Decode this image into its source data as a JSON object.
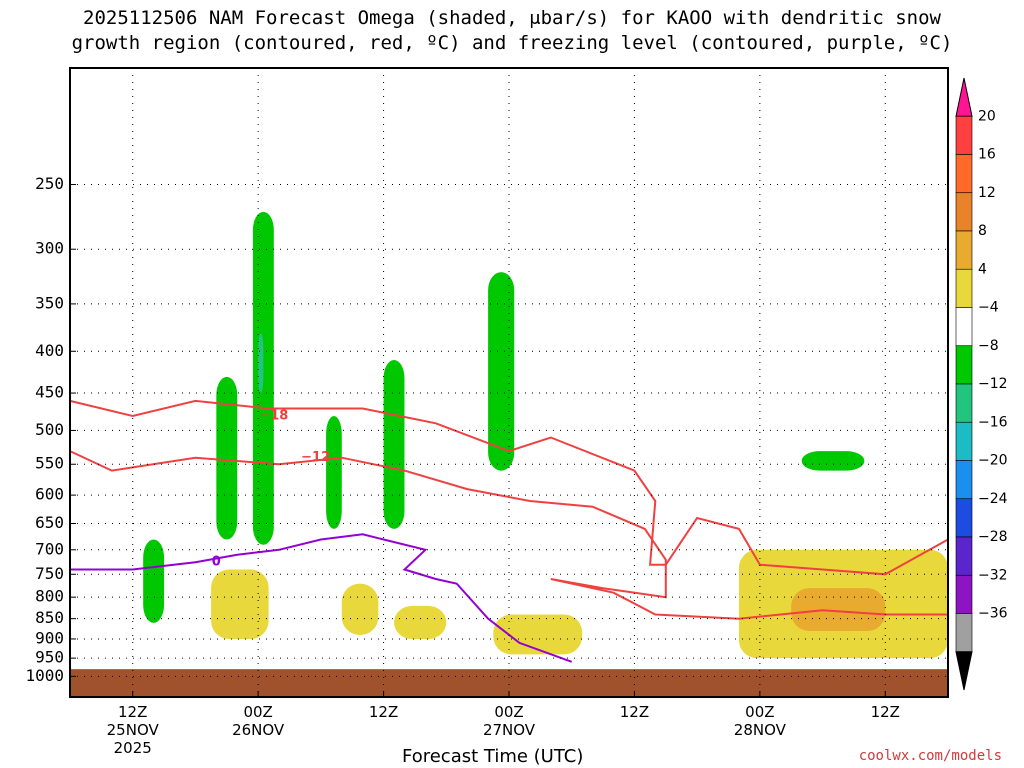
{
  "figure": {
    "title_line1": "2025112506 NAM Forecast Omega (shaded, μbar/s) for KAOO with dendritic snow",
    "title_line2": "growth region (contoured, red, ºC) and freezing level (contoured, purple, ºC)",
    "credit": "coolwx.com/models"
  },
  "chart_data": {
    "type": "heatmap",
    "title": "2025112506 NAM Forecast Omega (shaded, μbar/s) for KAOO with dendritic snow growth region (contoured, red, ºC) and freezing level (contoured, purple, ºC)",
    "xlabel": "Forecast Time (UTC)",
    "ylabel": "",
    "y_scale": "log",
    "y_reversed": true,
    "yticks": [
      250,
      300,
      350,
      400,
      450,
      500,
      550,
      600,
      650,
      700,
      750,
      800,
      850,
      900,
      950,
      1000
    ],
    "xticks": [
      {
        "hours": 6,
        "label": "12Z",
        "date": "25NOV",
        "year": "2025"
      },
      {
        "hours": 18,
        "label": "00Z",
        "date": "26NOV",
        "year": ""
      },
      {
        "hours": 30,
        "label": "12Z",
        "date": "",
        "year": ""
      },
      {
        "hours": 42,
        "label": "00Z",
        "date": "27NOV",
        "year": ""
      },
      {
        "hours": 54,
        "label": "12Z",
        "date": "",
        "year": ""
      },
      {
        "hours": 66,
        "label": "00Z",
        "date": "28NOV",
        "year": ""
      },
      {
        "hours": 78,
        "label": "12Z",
        "date": "",
        "year": ""
      }
    ],
    "xlim_hours": [
      0,
      84
    ],
    "ylim_hpa": [
      180,
      1060
    ],
    "grid": true,
    "colorbar": {
      "labels": [
        "20",
        "16",
        "12",
        "8",
        "4",
        "−4",
        "−8",
        "−12",
        "−16",
        "−20",
        "−24",
        "−28",
        "−32",
        "−36"
      ],
      "colors": [
        "#ff1493",
        "#ff4040",
        "#ff6a2a",
        "#e8832a",
        "#e8aa2f",
        "#e9d83b",
        "#ffffff",
        "#00c800",
        "#22c57e",
        "#1dbcc4",
        "#1a8ff0",
        "#1d4de0",
        "#5a25cc",
        "#8c14c2",
        "#a0a0a0",
        "#000000"
      ],
      "orientation": "vertical",
      "placement": "right"
    },
    "ground_color": "#a0522d",
    "shaded_regions": [
      {
        "name": "upward motion -4 to -8",
        "color": "#00c800",
        "t_range": [
          17.5,
          19.5
        ],
        "p_range": [
          270,
          690
        ]
      },
      {
        "name": "upward motion -8 to -12",
        "color": "#22c57e",
        "t_range": [
          18,
          18.5
        ],
        "p_range": [
          380,
          450
        ]
      },
      {
        "name": "upward motion -4 to -8",
        "color": "#00c800",
        "t_range": [
          14,
          16
        ],
        "p_range": [
          430,
          680
        ]
      },
      {
        "name": "upward motion -4 to -8",
        "color": "#00c800",
        "t_range": [
          24.5,
          26
        ],
        "p_range": [
          480,
          660
        ]
      },
      {
        "name": "upward motion -4 to -8",
        "color": "#00c800",
        "t_range": [
          30,
          32
        ],
        "p_range": [
          410,
          660
        ]
      },
      {
        "name": "upward motion -4 to -8",
        "color": "#00c800",
        "t_range": [
          40,
          42.5
        ],
        "p_range": [
          320,
          560
        ]
      },
      {
        "name": "upward motion -4 to -8",
        "color": "#00c800",
        "t_range": [
          7,
          9
        ],
        "p_range": [
          680,
          860
        ]
      },
      {
        "name": "upward motion -4 to -8",
        "color": "#00c800",
        "t_range": [
          70,
          76
        ],
        "p_range": [
          530,
          560
        ]
      },
      {
        "name": "downward motion 4 to 8",
        "color": "#e9d83b",
        "t_range": [
          64,
          84
        ],
        "p_range": [
          700,
          950
        ]
      },
      {
        "name": "downward motion 8 to 12",
        "color": "#e8aa2f",
        "t_range": [
          69,
          78
        ],
        "p_range": [
          780,
          880
        ]
      },
      {
        "name": "downward motion 4 to 8",
        "color": "#e9d83b",
        "t_range": [
          40.5,
          49
        ],
        "p_range": [
          840,
          940
        ]
      },
      {
        "name": "downward motion 4 to 8",
        "color": "#e9d83b",
        "t_range": [
          13.5,
          19
        ],
        "p_range": [
          740,
          900
        ]
      },
      {
        "name": "downward motion 4 to 8",
        "color": "#e9d83b",
        "t_range": [
          26,
          29.5
        ],
        "p_range": [
          770,
          890
        ]
      },
      {
        "name": "downward motion 4 to 8",
        "color": "#e9d83b",
        "t_range": [
          31,
          36
        ],
        "p_range": [
          820,
          900
        ]
      }
    ],
    "contours": [
      {
        "name": "-18 isotherm",
        "color": "#f04040",
        "label": "−18",
        "label_hours": 19.5,
        "label_hpa": 480,
        "points": [
          [
            0,
            460
          ],
          [
            6,
            480
          ],
          [
            12,
            460
          ],
          [
            19,
            470
          ],
          [
            28,
            470
          ],
          [
            35,
            490
          ],
          [
            42,
            530
          ],
          [
            46,
            510
          ],
          [
            54,
            560
          ],
          [
            56,
            610
          ],
          [
            55.5,
            730
          ],
          [
            57,
            730
          ],
          [
            60,
            640
          ],
          [
            64,
            660
          ],
          [
            66,
            730
          ],
          [
            72,
            740
          ],
          [
            78,
            750
          ],
          [
            84,
            680
          ]
        ]
      },
      {
        "name": "-12 isotherm",
        "color": "#f04040",
        "label": "−12",
        "label_hours": 23.5,
        "label_hpa": 540,
        "points": [
          [
            0,
            530
          ],
          [
            4,
            560
          ],
          [
            12,
            540
          ],
          [
            20,
            550
          ],
          [
            26,
            540
          ],
          [
            32,
            560
          ],
          [
            38,
            590
          ],
          [
            44,
            610
          ],
          [
            50,
            620
          ],
          [
            55,
            660
          ],
          [
            57,
            720
          ],
          [
            57,
            800
          ],
          [
            51,
            780
          ],
          [
            46,
            760
          ],
          [
            52,
            790
          ],
          [
            56,
            840
          ],
          [
            64,
            850
          ],
          [
            72,
            830
          ],
          [
            78,
            840
          ],
          [
            84,
            840
          ]
        ]
      },
      {
        "name": "freezing level 0",
        "color": "#9400d3",
        "label": "0",
        "label_hours": 14,
        "label_hpa": 725,
        "points": [
          [
            0,
            740
          ],
          [
            6,
            740
          ],
          [
            12,
            725
          ],
          [
            16,
            710
          ],
          [
            20,
            700
          ],
          [
            24,
            680
          ],
          [
            28,
            670
          ],
          [
            30,
            680
          ],
          [
            34,
            700
          ],
          [
            32,
            740
          ],
          [
            35,
            760
          ],
          [
            37,
            770
          ],
          [
            40,
            850
          ],
          [
            43,
            910
          ],
          [
            48,
            960
          ]
        ]
      }
    ]
  }
}
